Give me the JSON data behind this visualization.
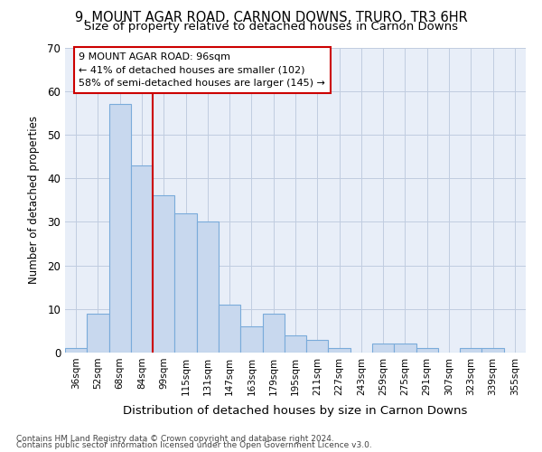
{
  "title1": "9, MOUNT AGAR ROAD, CARNON DOWNS, TRURO, TR3 6HR",
  "title2": "Size of property relative to detached houses in Carnon Downs",
  "xlabel": "Distribution of detached houses by size in Carnon Downs",
  "ylabel": "Number of detached properties",
  "categories": [
    "36sqm",
    "52sqm",
    "68sqm",
    "84sqm",
    "99sqm",
    "115sqm",
    "131sqm",
    "147sqm",
    "163sqm",
    "179sqm",
    "195sqm",
    "211sqm",
    "227sqm",
    "243sqm",
    "259sqm",
    "275sqm",
    "291sqm",
    "307sqm",
    "323sqm",
    "339sqm",
    "355sqm"
  ],
  "values": [
    1,
    9,
    57,
    43,
    36,
    32,
    30,
    11,
    6,
    9,
    4,
    3,
    1,
    0,
    2,
    2,
    1,
    0,
    1,
    1,
    0
  ],
  "bar_color": "#c8d8ee",
  "bar_edge_color": "#7aabda",
  "vline_color": "#cc0000",
  "annotation_title": "9 MOUNT AGAR ROAD: 96sqm",
  "annotation_line1": "← 41% of detached houses are smaller (102)",
  "annotation_line2": "58% of semi-detached houses are larger (145) →",
  "annotation_box_color": "#ffffff",
  "annotation_box_edge": "#cc0000",
  "ylim": [
    0,
    70
  ],
  "yticks": [
    0,
    10,
    20,
    30,
    40,
    50,
    60,
    70
  ],
  "footnote1": "Contains HM Land Registry data © Crown copyright and database right 2024.",
  "footnote2": "Contains public sector information licensed under the Open Government Licence v3.0.",
  "bg_color": "#e8eef8",
  "title1_fontsize": 10.5,
  "title2_fontsize": 9.5
}
